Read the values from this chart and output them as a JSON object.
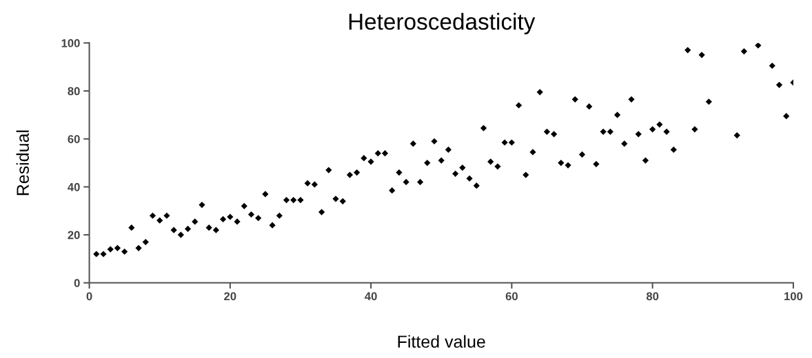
{
  "chart_data": {
    "type": "scatter",
    "title": "Heteroscedasticity",
    "xlabel": "Fitted value",
    "ylabel": "Residual",
    "x": [
      1,
      2,
      3,
      4,
      5,
      6,
      7,
      8,
      9,
      10,
      11,
      12,
      13,
      14,
      15,
      16,
      17,
      18,
      19,
      20,
      21,
      22,
      23,
      24,
      25,
      26,
      27,
      28,
      29,
      30,
      31,
      32,
      33,
      34,
      35,
      36,
      37,
      38,
      39,
      40,
      41,
      42,
      43,
      44,
      45,
      46,
      47,
      48,
      49,
      50,
      51,
      52,
      53,
      54,
      55,
      56,
      57,
      58,
      59,
      60,
      61,
      62,
      63,
      64,
      65,
      66,
      67,
      68,
      69,
      70,
      71,
      72,
      73,
      74,
      75,
      76,
      77,
      78,
      79,
      80,
      81,
      82,
      83,
      85,
      86,
      87,
      88,
      92,
      93,
      95,
      97,
      98,
      99,
      100
    ],
    "series": [
      {
        "color": "#000000",
        "values": [
          12,
          12,
          14,
          14.5,
          13,
          23,
          14.5,
          17,
          28,
          26,
          28,
          22,
          20,
          22.5,
          25.5,
          32.5,
          23,
          22,
          26.5,
          27.5,
          25.5,
          32,
          28.5,
          27,
          37,
          24,
          28,
          34.5,
          34.5,
          34.5,
          41.5,
          41,
          29.5,
          47,
          35,
          34,
          45,
          46,
          52,
          50.5,
          54,
          54,
          38.5,
          46,
          42,
          58,
          42,
          50,
          59,
          51,
          55.5,
          45.5,
          48,
          43.5,
          40.5,
          64.5,
          50.5,
          48.5,
          58.5,
          58.5,
          74,
          45,
          54.5,
          79.5,
          63,
          62,
          50,
          49,
          76.5,
          53.5,
          73.5,
          49.5,
          63,
          63,
          70,
          58,
          76.5,
          62,
          51,
          64,
          66,
          63,
          55.5,
          97,
          64,
          95,
          75.5,
          61.5,
          96.5,
          99,
          90.5,
          82.5,
          69.5,
          83.5
        ]
      }
    ],
    "xlim": [
      0,
      100
    ],
    "ylim": [
      0,
      100
    ],
    "xticks": [
      0,
      20,
      40,
      60,
      80,
      100
    ],
    "yticks": [
      0,
      20,
      40,
      60,
      80,
      100
    ],
    "grid": false,
    "marker": "diamond"
  }
}
